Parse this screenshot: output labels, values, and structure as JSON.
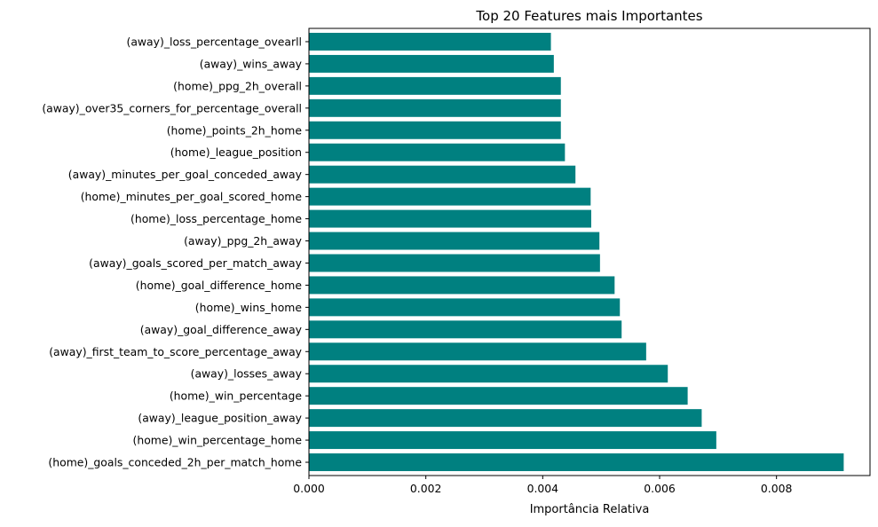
{
  "chart_data": {
    "type": "bar",
    "orientation": "horizontal",
    "title": "Top 20 Features mais Importantes",
    "xlabel": "Importância Relativa",
    "ylabel": "",
    "xlim": [
      0,
      0.0096
    ],
    "xticks": [
      0,
      0.002,
      0.004,
      0.006,
      0.008
    ],
    "xtick_labels": [
      "0.000",
      "0.002",
      "0.004",
      "0.006",
      "0.008"
    ],
    "grid": false,
    "bar_color": "#008080",
    "categories": [
      "(home)_goals_conceded_2h_per_match_home",
      "(home)_win_percentage_home",
      "(away)_league_position_away",
      "(home)_win_percentage",
      "(away)_losses_away",
      "(away)_first_team_to_score_percentage_away",
      "(away)_goal_difference_away",
      "(home)_wins_home",
      "(home)_goal_difference_home",
      "(away)_goals_scored_per_match_away",
      "(away)_ppg_2h_away",
      "(home)_loss_percentage_home",
      "(home)_minutes_per_goal_scored_home",
      "(away)_minutes_per_goal_conceded_away",
      "(home)_league_position",
      "(home)_points_2h_home",
      "(away)_over35_corners_for_percentage_overall",
      "(home)_ppg_2h_overall",
      "(away)_wins_away",
      "(away)_loss_percentage_ovearll"
    ],
    "values": [
      0.00915,
      0.00697,
      0.00672,
      0.00648,
      0.00614,
      0.00577,
      0.00535,
      0.00532,
      0.00523,
      0.00498,
      0.00497,
      0.00483,
      0.00482,
      0.00456,
      0.00438,
      0.00431,
      0.00431,
      0.00431,
      0.00419,
      0.00414
    ]
  }
}
